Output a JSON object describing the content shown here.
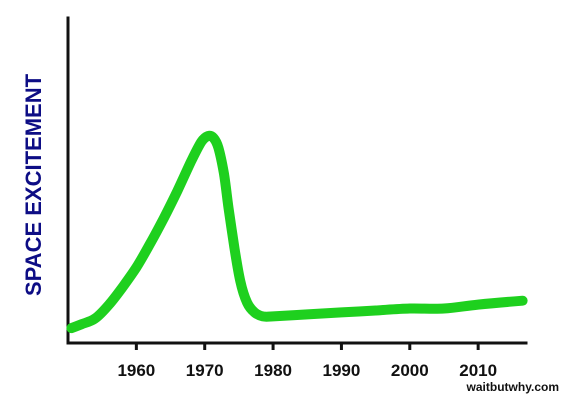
{
  "chart_data": {
    "type": "line",
    "title": "",
    "xlabel": "",
    "ylabel": "SPACE EXCITEMENT",
    "xlim": [
      1950,
      2017
    ],
    "ylim": [
      0,
      100
    ],
    "x_ticks": [
      1960,
      1970,
      1980,
      1990,
      2000,
      2010
    ],
    "x_tick_labels": [
      "1960",
      "1970",
      "1980",
      "1990",
      "2000",
      "2010"
    ],
    "grid": false,
    "series": [
      {
        "color": "#1ed01e",
        "points": [
          [
            1950.5,
            3
          ],
          [
            1952,
            5
          ],
          [
            1954,
            8
          ],
          [
            1956,
            15
          ],
          [
            1958,
            24
          ],
          [
            1960,
            34
          ],
          [
            1962,
            46
          ],
          [
            1964,
            59
          ],
          [
            1966,
            73
          ],
          [
            1968,
            88
          ],
          [
            1969.5,
            98
          ],
          [
            1970.5,
            101
          ],
          [
            1971.3,
            100
          ],
          [
            1972,
            95
          ],
          [
            1972.8,
            82
          ],
          [
            1973.5,
            64
          ],
          [
            1974.3,
            45
          ],
          [
            1975.2,
            27
          ],
          [
            1976.2,
            16
          ],
          [
            1977.3,
            11
          ],
          [
            1978.5,
            9
          ],
          [
            1980,
            9
          ],
          [
            1985,
            10
          ],
          [
            1990,
            11
          ],
          [
            1995,
            12
          ],
          [
            2000,
            13
          ],
          [
            2005,
            13
          ],
          [
            2010,
            15
          ],
          [
            2016.5,
            17
          ]
        ]
      }
    ],
    "colors": {
      "line": "#1ed01e",
      "axis": "#111111",
      "ylabel": "#0d0d85"
    }
  },
  "credit": "waitbutwhy.com"
}
